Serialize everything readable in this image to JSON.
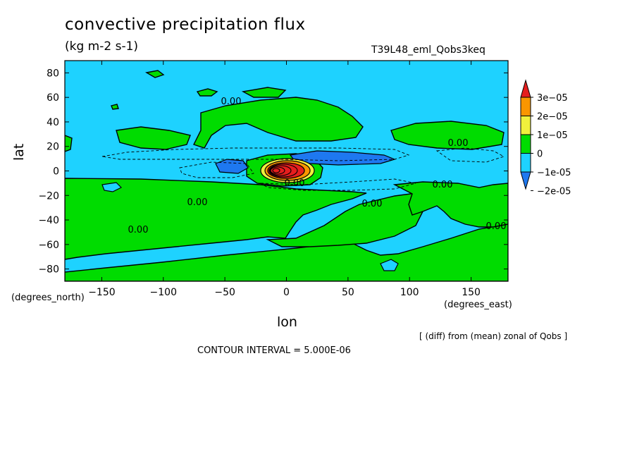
{
  "header": {
    "title": "convective precipitation flux",
    "units": "(kg m-2 s-1)",
    "run_id": "T39L48_eml_Qobs3keq"
  },
  "footer": {
    "x_unit": "(degrees_east)",
    "y_unit": "(degrees_north)",
    "note": "[ (diff) from (mean) zonal of Qobs ]",
    "contour_interval": "CONTOUR INTERVAL = 5.000E-06"
  },
  "chart_data": {
    "type": "heatmap",
    "title": "convective precipitation flux",
    "subtitle": "(kg m-2 s-1)",
    "xlabel": "lon",
    "ylabel": "lat",
    "xlim": [
      -180,
      180
    ],
    "ylim": [
      -90,
      90
    ],
    "x_ticks": [
      -150,
      -100,
      -50,
      0,
      50,
      100,
      150
    ],
    "y_ticks": [
      80,
      60,
      40,
      20,
      0,
      -20,
      -40,
      -60,
      -80
    ],
    "contour_interval": 5e-06,
    "contour_labels": [
      "0.00",
      "0.00",
      "0.00",
      "0.00",
      "0.00",
      "0.00",
      "0.00",
      "0.00",
      "0.00"
    ],
    "colorbar": {
      "labels": [
        "3e-05",
        "2e-05",
        "1e-05",
        "0",
        "-1e-05",
        "-2e-05"
      ],
      "colors": [
        "#1e78f0",
        "#1ed2ff",
        "#00dc00",
        "#f0f03c",
        "#fa9600",
        "#e61e1e"
      ],
      "levels": [
        -2e-05,
        -1e-05,
        0,
        1e-05,
        2e-05,
        3e-05
      ]
    },
    "grid": false,
    "features": {
      "background_level": "-1e-05 to 0",
      "positive_regions": "0 to 1e-05",
      "negative_equatorial": "-2e-05 to -1e-05",
      "maximum": {
        "lon": 0,
        "lat": 0,
        "value": ">3e-05"
      }
    }
  }
}
